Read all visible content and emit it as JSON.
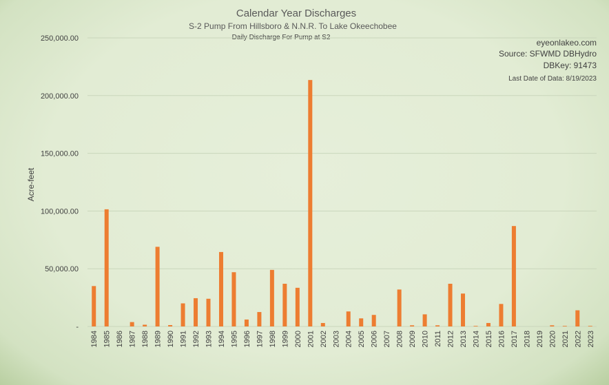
{
  "chart_data": {
    "type": "bar",
    "title": "Calendar Year Discharges",
    "subtitle": "S-2 Pump From Hillsboro & N.N.R. To Lake Okeechobee",
    "subtitle2": "Daily Discharge For Pump at S2",
    "ylabel": "Acre-feet",
    "xlabel": "",
    "ylim": [
      0,
      250000
    ],
    "yticks": [
      0,
      50000,
      100000,
      150000,
      200000,
      250000
    ],
    "ytick_labels": [
      "-",
      "50,000.00",
      "100,000.00",
      "150,000.00",
      "200,000.00",
      "250,000.00"
    ],
    "grid": true,
    "bar_color": "#ed7d31",
    "categories": [
      "1984",
      "1985",
      "1986",
      "1987",
      "1988",
      "1989",
      "1990",
      "1991",
      "1992",
      "1993",
      "1994",
      "1995",
      "1996",
      "1997",
      "1998",
      "1999",
      "2000",
      "2001",
      "2002",
      "2003",
      "2004",
      "2005",
      "2006",
      "2007",
      "2008",
      "2009",
      "2010",
      "2011",
      "2012",
      "2013",
      "2014",
      "2015",
      "2016",
      "2017",
      "2018",
      "2019",
      "2020",
      "2021",
      "2022",
      "2023"
    ],
    "values": [
      35000,
      101500,
      0,
      3800,
      1500,
      69000,
      1200,
      20000,
      24500,
      24000,
      64500,
      47000,
      6000,
      12500,
      49000,
      37000,
      33500,
      213500,
      3000,
      0,
      13000,
      7000,
      10000,
      0,
      32000,
      1000,
      10500,
      1000,
      37000,
      28500,
      500,
      3000,
      19500,
      87000,
      0,
      0,
      1000,
      500,
      14000,
      500
    ]
  },
  "info": {
    "site": "eyeonlakeo.com",
    "source": "Source: SFWMD DBHydro",
    "dbkey": "DBKey: 91473",
    "last_date": "Last Date of Data: 8/19/2023"
  }
}
